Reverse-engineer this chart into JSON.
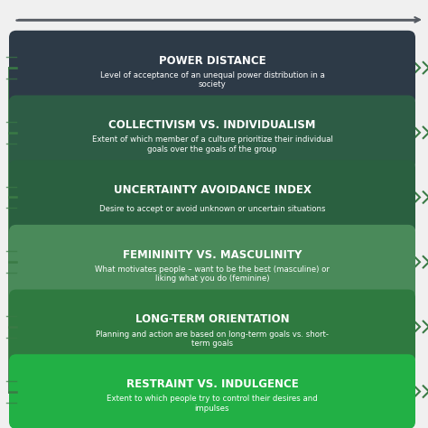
{
  "background_color": "#f0f0f0",
  "boxes": [
    {
      "title": "POWER DISTANCE",
      "subtitle": "Level of acceptance of an unequal power distribution in a\nsociety",
      "bg_color": "#2d3a47",
      "text_color": "#ffffff"
    },
    {
      "title": "COLLECTIVISM VS. INDIVIDUALISM",
      "subtitle": "Extent of which member of a culture prioritize their individual\ngoals over the goals of the group",
      "bg_color": "#2d5c45",
      "text_color": "#ffffff"
    },
    {
      "title": "UNCERTAINTY AVOIDANCE INDEX",
      "subtitle": "Desire to accept or avoid unknown or uncertain situations",
      "bg_color": "#2a6040",
      "text_color": "#ffffff"
    },
    {
      "title": "FEMININITY VS. MASCULINITY",
      "subtitle": "What motivates people – want to be the best (masculine) or\nliking what you do (feminine)",
      "bg_color": "#4a8a5a",
      "text_color": "#ffffff"
    },
    {
      "title": "LONG-TERM ORIENTATION",
      "subtitle": "Planning and action are based on long-term goals vs. short-\nterm goals",
      "bg_color": "#2f7a40",
      "text_color": "#ffffff"
    },
    {
      "title": "RESTRAINT VS. INDULGENCE",
      "subtitle": "Extent to which people try to control their desires and\nimpulses",
      "bg_color": "#22b045",
      "text_color": "#ffffff"
    }
  ],
  "top_arrow_color": "#555a62",
  "spine_color": "#3a7a45",
  "left_line_color": "#3a7a45",
  "right_arrow_color": "#3a7a45",
  "title_fontsize": 8.5,
  "subtitle_fontsize": 6.2
}
